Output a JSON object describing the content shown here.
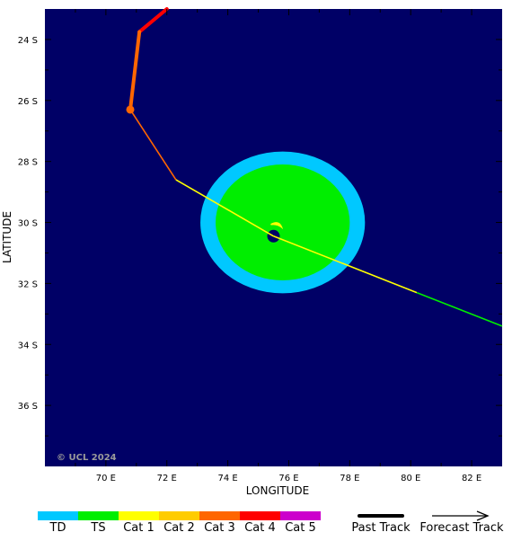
{
  "map": {
    "lon_range": [
      68.0,
      83.0
    ],
    "lat_range": [
      -38.0,
      -23.0
    ],
    "lon_ticks": [
      70,
      72,
      74,
      76,
      78,
      80,
      82
    ],
    "lat_ticks": [
      -24,
      -26,
      -28,
      -30,
      -32,
      -34,
      -36
    ],
    "lon_tick_labels": [
      "70 E",
      "72 E",
      "74 E",
      "76 E",
      "78 E",
      "80 E",
      "82 E"
    ],
    "lat_tick_labels": [
      "24 S",
      "26 S",
      "28 S",
      "30 S",
      "32 S",
      "34 S",
      "36 S"
    ],
    "xlabel": "LONGITUDE",
    "ylabel": "LATITUDE",
    "copyright": "© UCL 2024",
    "colors": {
      "ocean": "#000066",
      "TD": "#00c8ff",
      "TS": "#00ee00",
      "Cat 1": "#ffff00",
      "Cat 2": "#ffcc00",
      "Cat 3": "#ff6600",
      "Cat 4": "#ff0000",
      "Cat 5": "#cc00cc"
    },
    "storm_center": {
      "lon": 75.5,
      "lat": -30.45
    },
    "wind_radii": {
      "TD": {
        "lon": 75.8,
        "lat": -30.0,
        "rx_deg": 5.4,
        "ry_deg": 4.65
      },
      "TS": {
        "lon": 75.8,
        "lat": -30.0,
        "rx_deg": 4.4,
        "ry_deg": 3.8
      }
    },
    "past_track": [
      {
        "lon": 72.0,
        "lat": -23.0,
        "cat": "Cat 4"
      },
      {
        "lon": 71.1,
        "lat": -23.75,
        "cat": "Cat 3"
      },
      {
        "lon": 70.8,
        "lat": -26.3,
        "cat": "Cat 3"
      }
    ],
    "past_track_marker": {
      "lon": 70.8,
      "lat": -26.3,
      "cat": "Cat 3"
    },
    "forecast_track": [
      {
        "lon": 70.8,
        "lat": -26.3,
        "cat": "Cat 3"
      },
      {
        "lon": 72.3,
        "lat": -28.6,
        "cat": "Cat 1"
      },
      {
        "lon": 75.5,
        "lat": -30.45,
        "cat": "Cat 1"
      },
      {
        "lon": 80.2,
        "lat": -32.3,
        "cat": "TS"
      },
      {
        "lon": 83.0,
        "lat": -33.4,
        "cat": "TS"
      }
    ]
  },
  "legend": {
    "categories": [
      "TD",
      "TS",
      "Cat 1",
      "Cat 2",
      "Cat 3",
      "Cat 4",
      "Cat 5"
    ],
    "past_track_label": "Past Track",
    "forecast_track_label": "Forecast Track"
  }
}
